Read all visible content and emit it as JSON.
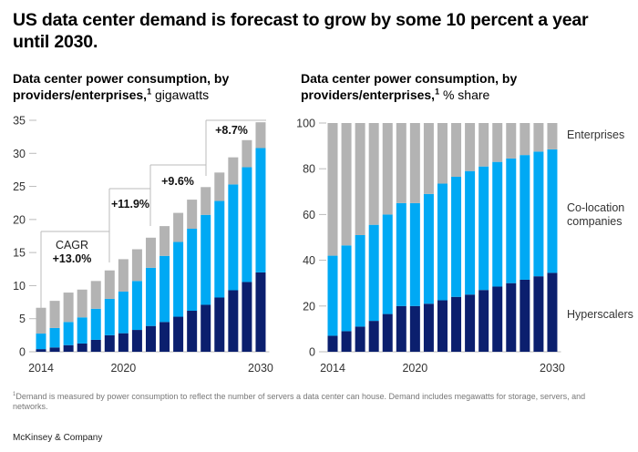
{
  "headline": "US data center demand is forecast to grow by some 10 percent a year until 2030.",
  "footnote_marker": "1",
  "footnote": "Demand is measured by power consumption to reflect the number of servers a data center can house. Demand includes megawatts for storage, servers, and networks.",
  "brand": "McKinsey & Company",
  "colors": {
    "hyperscalers": "#0b1f6e",
    "co_location": "#00a9f4",
    "enterprises": "#b3b3b3"
  },
  "chart_data": [
    {
      "type": "bar",
      "stacked": true,
      "title": "Data center power consumption, by providers/enterprises,",
      "title_marker": "1",
      "unit": "gigawatts",
      "categories": [
        "2014",
        "2015",
        "2016",
        "2017",
        "2018",
        "2019",
        "2020",
        "2021",
        "2022",
        "2023",
        "2024",
        "2025",
        "2026",
        "2027",
        "2028",
        "2029",
        "2030"
      ],
      "x_tick_labels": [
        "2014",
        "2020",
        "2030"
      ],
      "ylim": [
        0,
        35
      ],
      "y_ticks": [
        0,
        5,
        10,
        15,
        20,
        25,
        30,
        35
      ],
      "series": [
        {
          "key": "hyperscalers",
          "values": [
            0.4,
            0.65,
            1.0,
            1.25,
            1.8,
            2.5,
            2.8,
            3.3,
            3.9,
            4.5,
            5.3,
            6.2,
            7.1,
            8.2,
            9.3,
            10.55,
            12.0
          ]
        },
        {
          "key": "co_location",
          "values": [
            2.35,
            2.95,
            3.5,
            3.95,
            4.7,
            5.5,
            6.3,
            7.4,
            8.8,
            10.0,
            11.3,
            12.4,
            13.6,
            14.6,
            16.0,
            17.35,
            18.8
          ]
        },
        {
          "key": "enterprises",
          "values": [
            3.9,
            4.1,
            4.45,
            4.2,
            4.2,
            4.3,
            4.9,
            4.8,
            4.55,
            4.5,
            4.4,
            4.4,
            4.2,
            4.3,
            4.1,
            4.1,
            3.9
          ]
        }
      ],
      "annotations": [
        {
          "label": "CAGR",
          "value": "+13.0%"
        },
        {
          "value": "+11.9%"
        },
        {
          "value": "+9.6%"
        },
        {
          "value": "+8.7%"
        }
      ]
    },
    {
      "type": "bar",
      "stacked": true,
      "title": "Data center power consumption, by providers/enterprises,",
      "title_marker": "1",
      "unit": "% share",
      "categories": [
        "2014",
        "2015",
        "2016",
        "2017",
        "2018",
        "2019",
        "2020",
        "2021",
        "2022",
        "2023",
        "2024",
        "2025",
        "2026",
        "2027",
        "2028",
        "2029",
        "2030"
      ],
      "x_tick_labels": [
        "2014",
        "2020",
        "2030"
      ],
      "ylim": [
        0,
        100
      ],
      "y_ticks": [
        0,
        20,
        40,
        60,
        80,
        100
      ],
      "series": [
        {
          "key": "hyperscalers",
          "name": "Hyperscalers",
          "values": [
            7,
            9,
            11,
            13.5,
            16.5,
            20,
            20,
            21,
            22.5,
            24,
            25,
            27,
            28.5,
            30,
            31.5,
            33,
            34.5
          ]
        },
        {
          "key": "co_location",
          "name": "Co-location companies",
          "name_lines": [
            "Co-location",
            "companies"
          ],
          "values": [
            35,
            37.5,
            40,
            42,
            43.5,
            45,
            45,
            48,
            51,
            52.5,
            54,
            54,
            54.5,
            54.5,
            54.5,
            54.5,
            54
          ]
        },
        {
          "key": "enterprises",
          "name": "Enterprises",
          "values": [
            58,
            53.5,
            49,
            44.5,
            40,
            35,
            35,
            31,
            26.5,
            23.5,
            21,
            19,
            17,
            15.5,
            14,
            12.5,
            11.5
          ]
        }
      ]
    }
  ]
}
